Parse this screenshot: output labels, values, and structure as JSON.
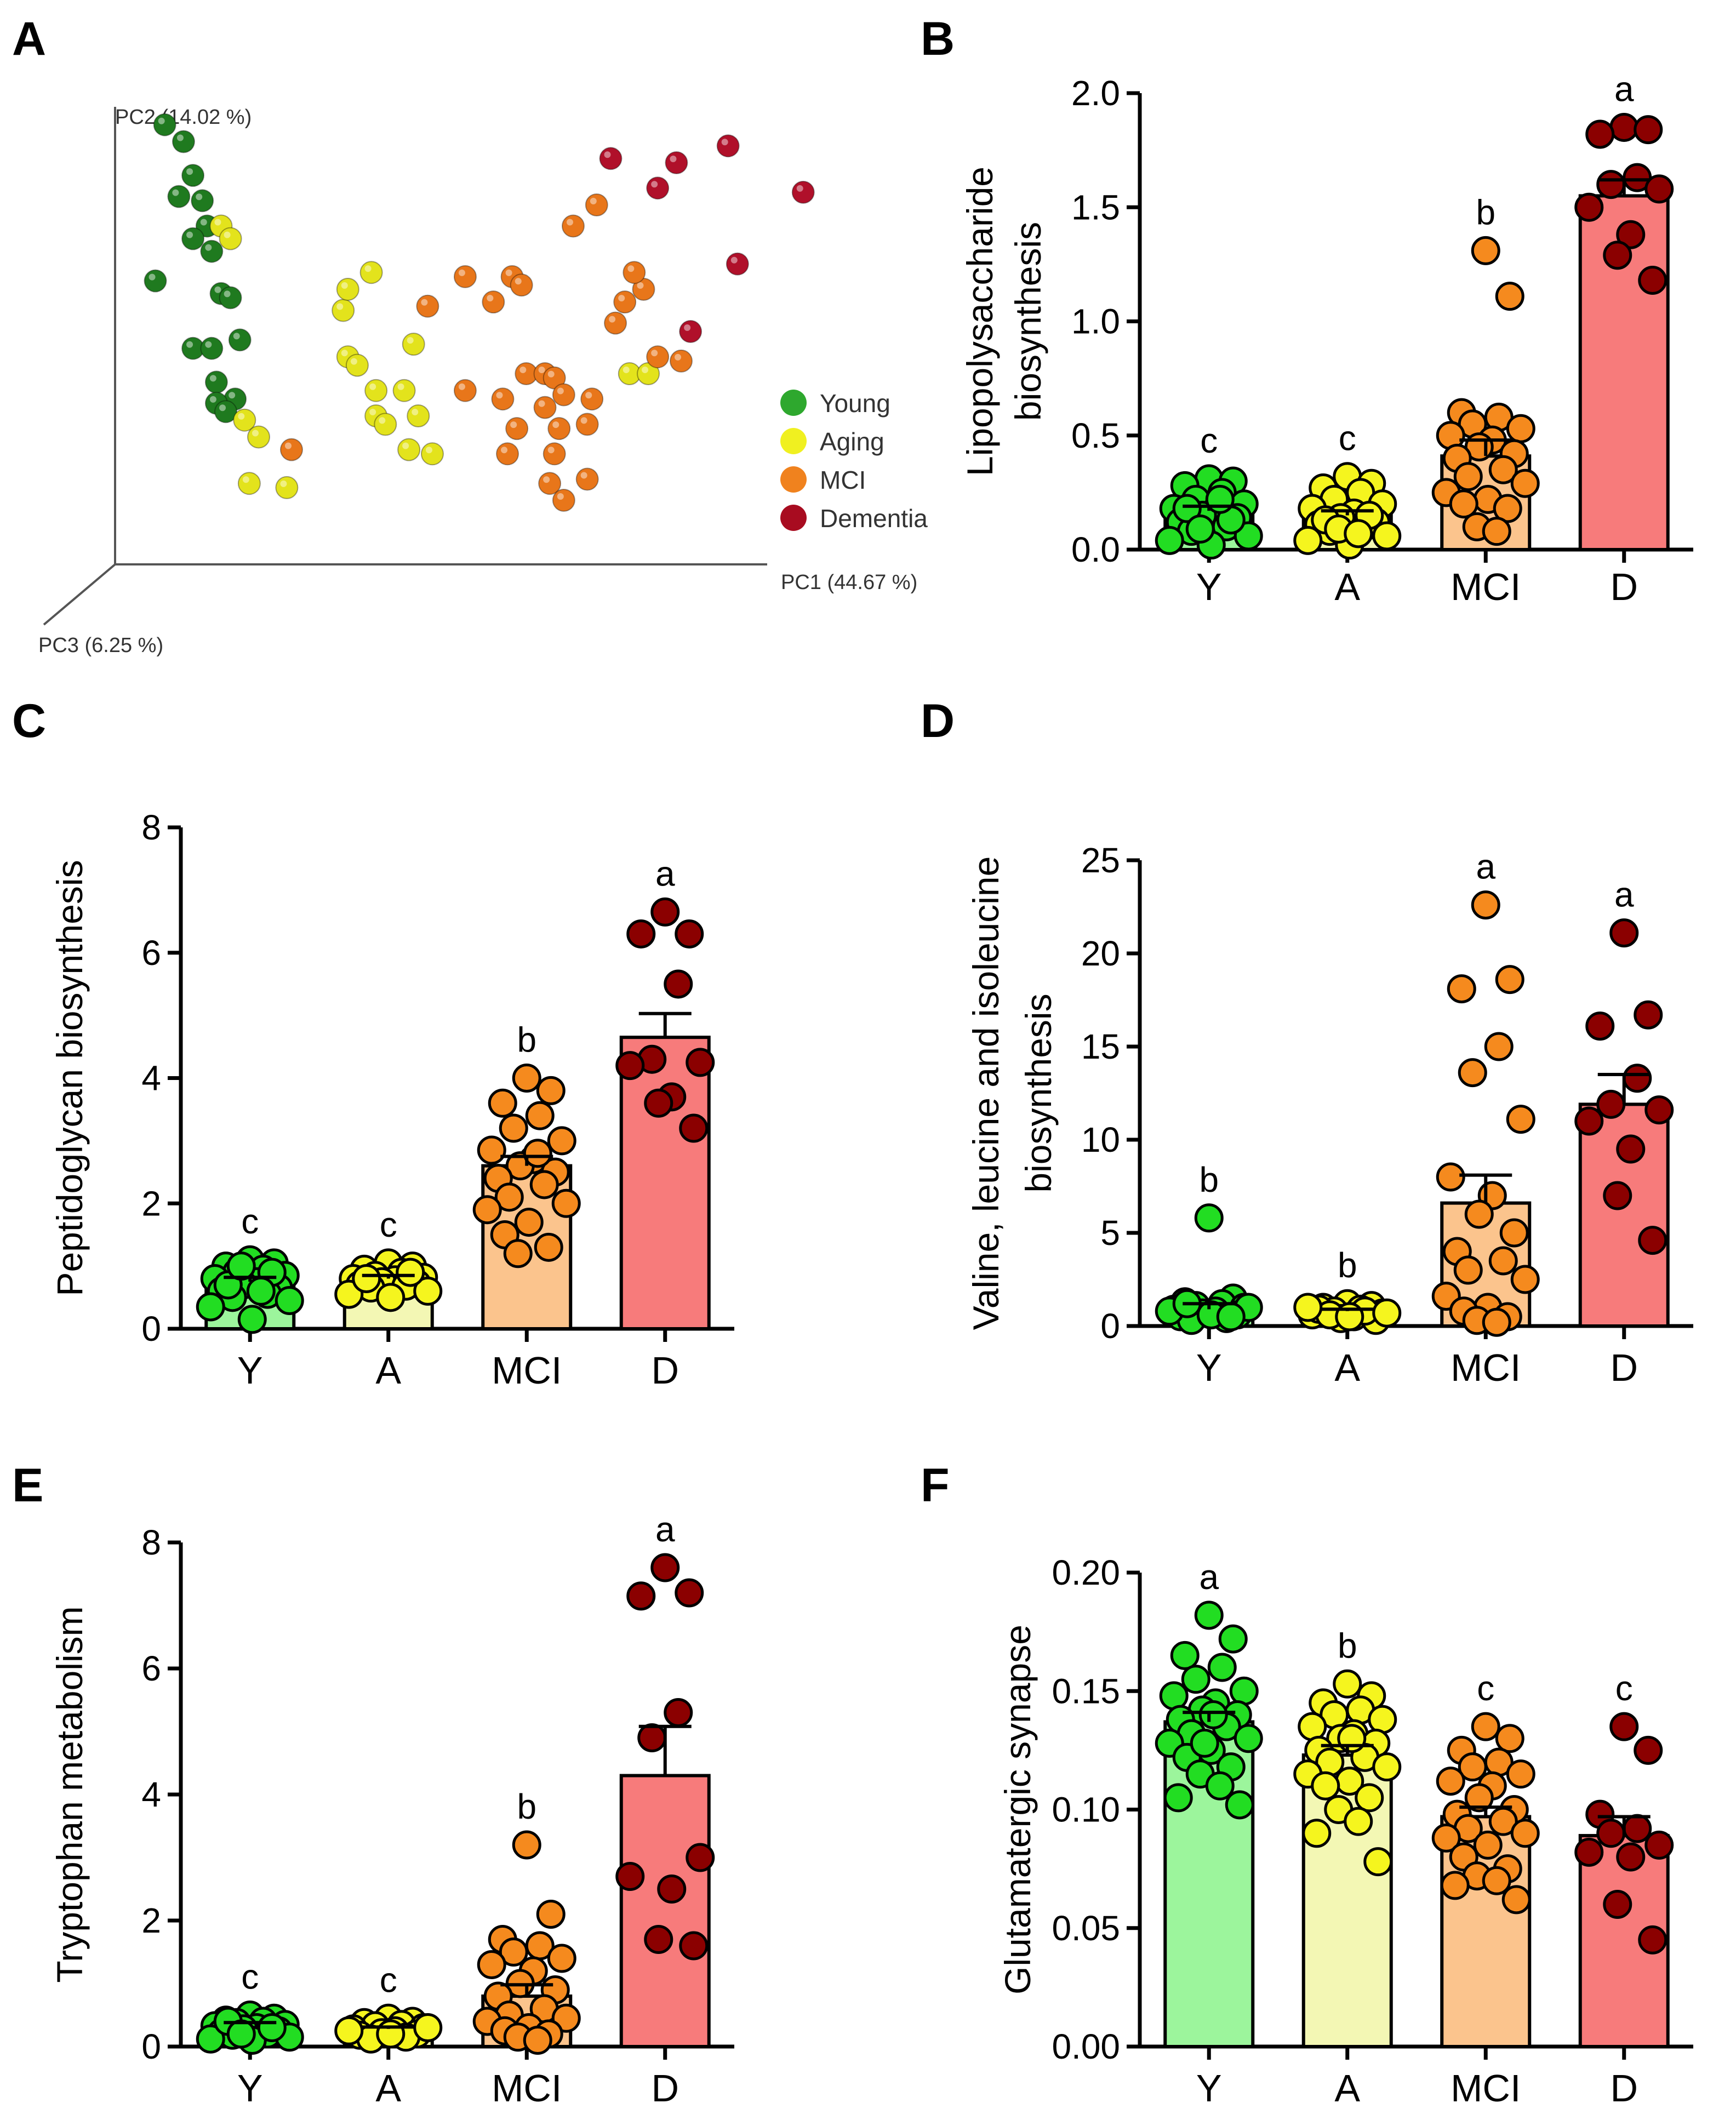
{
  "colors": {
    "young_dot": "#22dd22",
    "aging_dot": "#f5f51e",
    "mci_dot": "#f58a1e",
    "dementia_dot": "#8b0000",
    "young_bar": "#9cf59c",
    "aging_bar": "#f3f7b4",
    "mci_bar": "#fbc48d",
    "dementia_bar": "#f77b7b",
    "pca_young": "#1f7a1f",
    "pca_aging": "#e3e31c",
    "pca_mci": "#e8761a",
    "pca_dementia": "#b0102a"
  },
  "chart_data": [
    {
      "panel": "A",
      "type": "scatter",
      "title": "",
      "xlabel": "PC1 (44.67 %)",
      "ylabel": "PC2 (14.02 %)",
      "zlabel": "PC3 (6.25 %)",
      "legend": [
        "Young",
        "Aging",
        "MCI",
        "Dementia"
      ],
      "legend_position": "right",
      "series": [
        {
          "name": "Young",
          "points": [
            [
              1,
              9.9
            ],
            [
              1.4,
              9.5
            ],
            [
              1.6,
              8.7
            ],
            [
              1.3,
              8.2
            ],
            [
              1.8,
              8.1
            ],
            [
              1.9,
              7.5
            ],
            [
              1.6,
              7.2
            ],
            [
              2.0,
              6.9
            ],
            [
              0.8,
              6.2
            ],
            [
              2.2,
              5.9
            ],
            [
              2.4,
              5.8
            ],
            [
              1.6,
              4.6
            ],
            [
              2.0,
              4.6
            ],
            [
              2.1,
              3.8
            ],
            [
              2.5,
              3.4
            ],
            [
              2.1,
              3.3
            ],
            [
              2.3,
              3.1
            ],
            [
              2.6,
              4.8
            ]
          ]
        },
        {
          "name": "Aging",
          "points": [
            [
              2.2,
              7.5
            ],
            [
              2.4,
              7.2
            ],
            [
              5.4,
              6.4
            ],
            [
              4.8,
              5.5
            ],
            [
              4.9,
              4.4
            ],
            [
              5.1,
              4.2
            ],
            [
              5.5,
              3.6
            ],
            [
              6.1,
              3.6
            ],
            [
              5.5,
              3.0
            ],
            [
              6.4,
              3.0
            ],
            [
              5.7,
              2.8
            ],
            [
              2.7,
              2.9
            ],
            [
              3.0,
              2.5
            ],
            [
              6.2,
              2.2
            ],
            [
              6.7,
              2.1
            ],
            [
              2.8,
              1.4
            ],
            [
              3.6,
              1.3
            ],
            [
              4.9,
              6.0
            ],
            [
              6.3,
              4.7
            ],
            [
              10.9,
              4.0
            ],
            [
              11.3,
              4.0
            ]
          ]
        },
        {
          "name": "MCI",
          "points": [
            [
              9.7,
              7.5
            ],
            [
              10.2,
              8.0
            ],
            [
              7.4,
              6.3
            ],
            [
              8.4,
              6.3
            ],
            [
              8.6,
              6.1
            ],
            [
              6.6,
              5.6
            ],
            [
              10.8,
              5.7
            ],
            [
              11.2,
              6.0
            ],
            [
              11.0,
              6.4
            ],
            [
              8.0,
              5.7
            ],
            [
              10.6,
              5.2
            ],
            [
              11.5,
              4.4
            ],
            [
              12.0,
              4.3
            ],
            [
              8.7,
              4.0
            ],
            [
              9.1,
              4.0
            ],
            [
              9.3,
              3.9
            ],
            [
              7.4,
              3.6
            ],
            [
              8.2,
              3.4
            ],
            [
              9.5,
              3.5
            ],
            [
              10.1,
              3.4
            ],
            [
              9.1,
              3.2
            ],
            [
              8.5,
              2.7
            ],
            [
              9.4,
              2.7
            ],
            [
              10.0,
              2.8
            ],
            [
              8.3,
              2.1
            ],
            [
              9.3,
              2.1
            ],
            [
              3.7,
              2.2
            ],
            [
              9.2,
              1.4
            ],
            [
              10.0,
              1.5
            ],
            [
              9.5,
              1.0
            ]
          ]
        },
        {
          "name": "Dementia",
          "points": [
            [
              10.5,
              9.1
            ],
            [
              11.9,
              9.0
            ],
            [
              13.0,
              9.4
            ],
            [
              11.5,
              8.4
            ],
            [
              14.6,
              8.3
            ],
            [
              13.2,
              6.6
            ],
            [
              12.2,
              5.0
            ]
          ]
        }
      ]
    },
    {
      "panel": "B",
      "type": "bar",
      "categories": [
        "Y",
        "A",
        "MCI",
        "D"
      ],
      "values": [
        0.17,
        0.15,
        0.41,
        1.55
      ],
      "errors": [
        0.02,
        0.02,
        0.07,
        0.07
      ],
      "sig": [
        "c",
        "c",
        "b",
        "a"
      ],
      "ylabel_lines": [
        "Lipopolysaccharide",
        "biosynthesis"
      ],
      "ylim": [
        0,
        2.0
      ],
      "yticks": [
        0,
        0.5,
        1.0,
        1.5,
        2.0
      ],
      "ytick_labels": [
        "0.0",
        "0.5",
        "1.0",
        "1.5",
        "2.0"
      ],
      "points": [
        [
          0.31,
          0.3,
          0.28,
          0.25,
          0.22,
          0.2,
          0.18,
          0.17,
          0.15,
          0.14,
          0.12,
          0.1,
          0.08,
          0.06,
          0.04,
          0.02,
          0.18,
          0.13,
          0.09,
          0.22
        ],
        [
          0.32,
          0.29,
          0.27,
          0.25,
          0.22,
          0.2,
          0.18,
          0.16,
          0.14,
          0.12,
          0.11,
          0.1,
          0.08,
          0.06,
          0.04,
          0.02,
          0.13,
          0.15,
          0.09,
          0.07
        ],
        [
          1.31,
          1.11,
          0.6,
          0.58,
          0.55,
          0.53,
          0.5,
          0.48,
          0.45,
          0.42,
          0.4,
          0.35,
          0.32,
          0.29,
          0.25,
          0.22,
          0.2,
          0.18,
          0.1,
          0.08
        ],
        [
          1.85,
          1.84,
          1.82,
          1.63,
          1.6,
          1.58,
          1.5,
          1.38,
          1.29,
          1.18
        ]
      ]
    },
    {
      "panel": "C",
      "type": "bar",
      "categories": [
        "Y",
        "A",
        "MCI",
        "D"
      ],
      "values": [
        0.75,
        0.8,
        2.6,
        4.65
      ],
      "errors": [
        0.07,
        0.05,
        0.15,
        0.38
      ],
      "sig": [
        "c",
        "c",
        "b",
        "a"
      ],
      "ylabel_lines": [
        "Peptidoglycan  biosynthesis"
      ],
      "ylim": [
        0,
        8
      ],
      "yticks": [
        0,
        2,
        4,
        6,
        8
      ],
      "ytick_labels": [
        "0",
        "2",
        "4",
        "6",
        "8"
      ],
      "points": [
        [
          1.1,
          1.05,
          1.0,
          0.95,
          0.9,
          0.85,
          0.8,
          0.75,
          0.7,
          0.65,
          0.6,
          0.55,
          0.5,
          0.45,
          0.35,
          0.15,
          0.7,
          0.9,
          1.0,
          0.6
        ],
        [
          1.05,
          1.0,
          0.95,
          0.9,
          0.85,
          0.82,
          0.8,
          0.78,
          0.75,
          0.72,
          0.7,
          0.68,
          0.65,
          0.6,
          0.55,
          0.5,
          0.8,
          0.9
        ],
        [
          4.0,
          3.8,
          3.6,
          3.4,
          3.2,
          3.0,
          2.85,
          2.7,
          2.6,
          2.5,
          2.4,
          2.3,
          2.1,
          2.0,
          1.9,
          1.7,
          1.5,
          1.3,
          1.2,
          2.8
        ],
        [
          6.65,
          6.3,
          6.3,
          5.5,
          4.3,
          4.25,
          4.2,
          3.7,
          3.6,
          3.2
        ]
      ]
    },
    {
      "panel": "D",
      "type": "bar",
      "categories": [
        "Y",
        "A",
        "MCI",
        "D"
      ],
      "values": [
        0.9,
        0.8,
        6.6,
        11.9
      ],
      "errors": [
        0.3,
        0.1,
        1.5,
        1.6
      ],
      "sig": [
        "b",
        "b",
        "a",
        "a"
      ],
      "ylabel_lines": [
        "Valine, leucine and isoleucine",
        "biosynthesis"
      ],
      "ylim": [
        0,
        25
      ],
      "yticks": [
        0,
        5,
        10,
        15,
        20,
        25
      ],
      "ytick_labels": [
        "0",
        "5",
        "10",
        "15",
        "20",
        "25"
      ],
      "points": [
        [
          5.8,
          1.5,
          1.3,
          1.2,
          1.1,
          1.0,
          0.9,
          0.8,
          0.7,
          0.6,
          0.5,
          0.4,
          0.3,
          1.0,
          0.8,
          0.6,
          1.2,
          0.5
        ],
        [
          1.2,
          1.1,
          1.0,
          0.9,
          0.8,
          0.7,
          0.6,
          0.5,
          0.4,
          0.3,
          0.9,
          0.8,
          0.6,
          0.7,
          1.0,
          0.5
        ],
        [
          22.6,
          18.6,
          18.1,
          15.0,
          13.6,
          11.1,
          8.0,
          7.0,
          6.0,
          5.0,
          4.0,
          3.5,
          3.0,
          2.5,
          1.6,
          1.0,
          0.8,
          0.5,
          0.3,
          0.2
        ],
        [
          21.1,
          16.7,
          16.1,
          13.3,
          11.9,
          11.6,
          11.0,
          9.5,
          7.0,
          4.6
        ]
      ]
    },
    {
      "panel": "E",
      "type": "bar",
      "categories": [
        "Y",
        "A",
        "MCI",
        "D"
      ],
      "values": [
        0.35,
        0.28,
        0.8,
        4.3
      ],
      "errors": [
        0.03,
        0.03,
        0.18,
        0.78
      ],
      "sig": [
        "c",
        "c",
        "b",
        "a"
      ],
      "ylabel_lines": [
        "Tryptophan metabolism"
      ],
      "ylim": [
        0,
        8
      ],
      "yticks": [
        0,
        2,
        4,
        6,
        8
      ],
      "ytick_labels": [
        "0",
        "2",
        "4",
        "6",
        "8"
      ],
      "points": [
        [
          0.5,
          0.45,
          0.42,
          0.4,
          0.38,
          0.35,
          0.33,
          0.3,
          0.28,
          0.25,
          0.22,
          0.2,
          0.18,
          0.15,
          0.12,
          0.1,
          0.4,
          0.3,
          0.2
        ],
        [
          0.45,
          0.4,
          0.38,
          0.35,
          0.33,
          0.3,
          0.28,
          0.25,
          0.22,
          0.2,
          0.18,
          0.15,
          0.12,
          0.3,
          0.25,
          0.2
        ],
        [
          3.2,
          2.1,
          1.7,
          1.6,
          1.5,
          1.4,
          1.3,
          1.2,
          1.0,
          0.9,
          0.8,
          0.6,
          0.5,
          0.45,
          0.4,
          0.3,
          0.25,
          0.2,
          0.15,
          0.1
        ],
        [
          7.6,
          7.2,
          7.15,
          5.3,
          4.9,
          3.0,
          2.7,
          2.5,
          1.7,
          1.6
        ]
      ]
    },
    {
      "panel": "F",
      "type": "bar",
      "categories": [
        "Y",
        "A",
        "MCI",
        "D"
      ],
      "values": [
        0.137,
        0.123,
        0.097,
        0.089
      ],
      "errors": [
        0.004,
        0.004,
        0.004,
        0.008
      ],
      "sig": [
        "a",
        "b",
        "c",
        "c"
      ],
      "ylabel_lines": [
        "Glutamatergic synapse"
      ],
      "ylim": [
        0,
        0.2
      ],
      "yticks": [
        0,
        0.05,
        0.1,
        0.15,
        0.2
      ],
      "ytick_labels": [
        "0.00",
        "0.05",
        "0.10",
        "0.15",
        "0.20"
      ],
      "points": [
        [
          0.182,
          0.172,
          0.165,
          0.16,
          0.155,
          0.15,
          0.148,
          0.145,
          0.142,
          0.14,
          0.138,
          0.135,
          0.132,
          0.13,
          0.128,
          0.125,
          0.122,
          0.118,
          0.115,
          0.11,
          0.105,
          0.102,
          0.14,
          0.128
        ],
        [
          0.153,
          0.148,
          0.145,
          0.142,
          0.14,
          0.138,
          0.135,
          0.132,
          0.13,
          0.128,
          0.125,
          0.122,
          0.12,
          0.118,
          0.115,
          0.112,
          0.11,
          0.105,
          0.1,
          0.095,
          0.09,
          0.078,
          0.13
        ],
        [
          0.135,
          0.13,
          0.125,
          0.12,
          0.118,
          0.115,
          0.112,
          0.11,
          0.105,
          0.1,
          0.098,
          0.095,
          0.092,
          0.09,
          0.088,
          0.085,
          0.08,
          0.075,
          0.072,
          0.07,
          0.068,
          0.062
        ],
        [
          0.135,
          0.125,
          0.098,
          0.092,
          0.09,
          0.085,
          0.082,
          0.08,
          0.06,
          0.045
        ]
      ]
    }
  ]
}
